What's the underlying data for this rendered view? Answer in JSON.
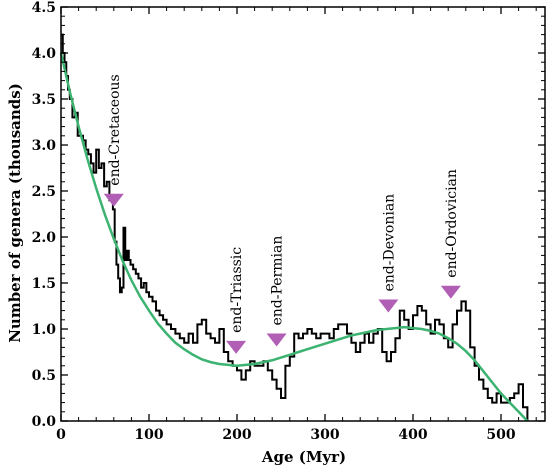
{
  "chart_data": {
    "type": "line",
    "xlabel": "Age (Myr)",
    "ylabel": "Number of genera (thousands)",
    "xlim": [
      0,
      550
    ],
    "ylim": [
      0,
      4.5
    ],
    "xticks": [
      0,
      100,
      200,
      300,
      400,
      500
    ],
    "xtick_labels": [
      "0",
      "100",
      "200",
      "300",
      "400",
      "500"
    ],
    "yticks": [
      0,
      0.5,
      1.0,
      1.5,
      2.0,
      2.5,
      3.0,
      3.5,
      4.0,
      4.5
    ],
    "ytick_labels": [
      "0.0",
      "0.5",
      "1.0",
      "1.5",
      "2.0",
      "2.5",
      "3.0",
      "3.5",
      "4.0",
      "4.5"
    ],
    "grid": false,
    "series": [
      {
        "style": "step",
        "color": "#000000",
        "x": [
          0,
          2,
          4,
          6,
          8,
          10,
          13,
          16,
          19,
          22,
          25,
          28,
          31,
          34,
          37,
          40,
          43,
          46,
          49,
          52,
          55,
          57,
          59,
          61,
          63,
          65,
          67,
          69,
          71,
          73,
          75,
          77,
          79,
          82,
          85,
          88,
          91,
          94,
          97,
          100,
          104,
          108,
          112,
          116,
          120,
          125,
          130,
          135,
          140,
          145,
          150,
          155,
          160,
          165,
          170,
          175,
          180,
          185,
          190,
          195,
          200,
          205,
          210,
          215,
          220,
          225,
          230,
          235,
          240,
          245,
          250,
          255,
          260,
          265,
          270,
          275,
          280,
          285,
          290,
          295,
          300,
          305,
          310,
          315,
          320,
          325,
          330,
          335,
          340,
          345,
          350,
          355,
          360,
          365,
          370,
          375,
          380,
          385,
          390,
          395,
          400,
          405,
          410,
          415,
          420,
          425,
          430,
          435,
          440,
          445,
          450,
          455,
          460,
          465,
          470,
          475,
          480,
          485,
          490,
          495,
          500,
          505,
          510,
          515,
          520,
          525,
          530
        ],
        "y": [
          4.2,
          4.0,
          3.9,
          3.75,
          3.6,
          3.5,
          3.3,
          3.35,
          3.1,
          3.1,
          3.05,
          2.95,
          2.9,
          2.8,
          2.7,
          2.95,
          2.75,
          2.8,
          2.55,
          2.6,
          2.4,
          2.45,
          2.3,
          1.95,
          1.7,
          1.55,
          1.4,
          1.45,
          2.1,
          1.75,
          1.85,
          1.75,
          1.7,
          1.65,
          1.6,
          1.55,
          1.45,
          1.5,
          1.4,
          1.35,
          1.3,
          1.2,
          1.15,
          1.1,
          1.05,
          1.0,
          0.95,
          0.9,
          0.85,
          0.95,
          0.85,
          1.05,
          1.1,
          0.95,
          0.9,
          0.85,
          1.0,
          0.75,
          0.65,
          0.6,
          0.55,
          0.45,
          0.55,
          0.65,
          0.6,
          0.6,
          0.65,
          0.55,
          0.45,
          0.35,
          0.25,
          0.6,
          0.7,
          0.95,
          0.9,
          0.95,
          1.0,
          0.95,
          0.9,
          0.95,
          0.95,
          0.9,
          1.0,
          1.05,
          1.05,
          0.95,
          0.85,
          0.75,
          0.85,
          0.95,
          0.85,
          0.95,
          1.0,
          0.75,
          0.65,
          0.75,
          0.9,
          1.2,
          1.1,
          1.0,
          1.15,
          1.25,
          1.2,
          1.05,
          0.95,
          1.1,
          1.05,
          0.9,
          0.8,
          1.05,
          1.2,
          1.3,
          1.2,
          0.8,
          0.6,
          0.45,
          0.35,
          0.25,
          0.2,
          0.3,
          0.2,
          0.2,
          0.25,
          0.3,
          0.4,
          0.15,
          0.0
        ]
      },
      {
        "style": "smooth",
        "color": "#3cb371",
        "x": [
          0,
          10,
          20,
          30,
          40,
          50,
          60,
          70,
          80,
          90,
          100,
          110,
          120,
          130,
          140,
          150,
          160,
          170,
          180,
          190,
          200,
          210,
          220,
          230,
          240,
          250,
          260,
          270,
          280,
          290,
          300,
          310,
          320,
          330,
          340,
          350,
          360,
          370,
          380,
          390,
          400,
          410,
          420,
          430,
          440,
          450,
          460,
          470,
          480,
          490,
          500,
          510,
          520,
          530
        ],
        "y": [
          4.0,
          3.58,
          3.2,
          2.85,
          2.53,
          2.24,
          1.98,
          1.74,
          1.53,
          1.35,
          1.2,
          1.06,
          0.95,
          0.85,
          0.78,
          0.72,
          0.67,
          0.64,
          0.62,
          0.61,
          0.6,
          0.61,
          0.62,
          0.64,
          0.66,
          0.69,
          0.72,
          0.75,
          0.78,
          0.81,
          0.84,
          0.87,
          0.9,
          0.93,
          0.95,
          0.97,
          0.99,
          1.0,
          1.01,
          1.02,
          1.01,
          1.0,
          0.98,
          0.95,
          0.9,
          0.84,
          0.76,
          0.66,
          0.54,
          0.42,
          0.3,
          0.2,
          0.1,
          0.0
        ]
      }
    ],
    "annotations": [
      {
        "text": "end-Cretaceous",
        "x": 60,
        "marker_y": 2.4
      },
      {
        "text": "end-Triassic",
        "x": 199,
        "marker_y": 0.8
      },
      {
        "text": "end-Permian",
        "x": 245,
        "marker_y": 0.88
      },
      {
        "text": "end-Devonian",
        "x": 372,
        "marker_y": 1.25
      },
      {
        "text": "end-Ordovician",
        "x": 443,
        "marker_y": 1.4
      }
    ],
    "marker_color": "#b05fb5"
  }
}
